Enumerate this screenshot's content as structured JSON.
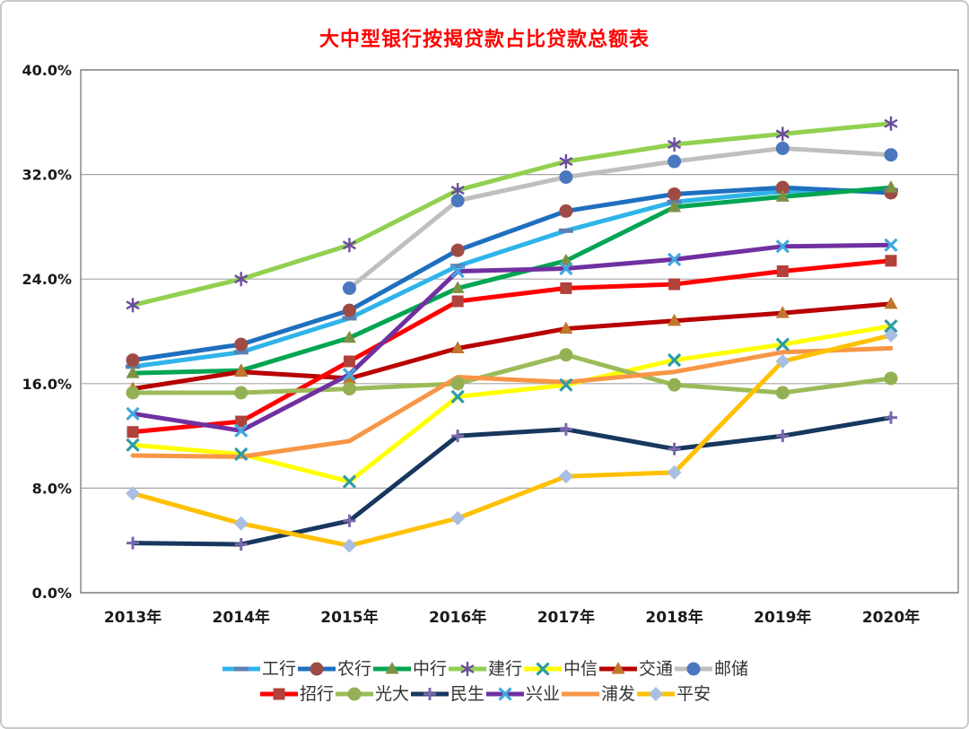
{
  "title": "大中型银行按揭贷款占比贷款总额表",
  "title_color": "#FF0000",
  "chart_data": {
    "type": "line",
    "title": "大中型银行按揭贷款占比贷款总额表",
    "categories": [
      "2013年",
      "2014年",
      "2015年",
      "2016年",
      "2017年",
      "2018年",
      "2019年",
      "2020年"
    ],
    "y_ticks": [
      "0.0%",
      "8.0%",
      "16.0%",
      "24.0%",
      "32.0%",
      "40.0%"
    ],
    "y_tick_values": [
      0,
      8,
      16,
      24,
      32,
      40
    ],
    "ylim": [
      0,
      40
    ],
    "grid": "horizontal-on",
    "legend_position": "bottom",
    "legend_rows": [
      [
        "工行",
        "农行",
        "中行",
        "建行",
        "中信",
        "交通",
        "邮储"
      ],
      [
        "招行",
        "光大",
        "民生",
        "兴业",
        "浦发",
        "平安"
      ]
    ],
    "series": [
      {
        "name": "工行",
        "color": "#2FB4E9",
        "marker": "dash",
        "marker_color": "#5B80B4",
        "values": [
          17.3,
          18.4,
          21.0,
          25.0,
          27.7,
          29.9,
          30.7,
          30.8
        ]
      },
      {
        "name": "农行",
        "color": "#1F6FBF",
        "marker": "circle",
        "marker_color": "#9E4B45",
        "values": [
          17.8,
          19.0,
          21.6,
          26.2,
          29.2,
          30.5,
          31.0,
          30.6
        ]
      },
      {
        "name": "中行",
        "color": "#00A551",
        "marker": "triangle",
        "marker_color": "#7E9144",
        "values": [
          16.8,
          17.0,
          19.5,
          23.3,
          25.4,
          29.5,
          30.3,
          31.0
        ]
      },
      {
        "name": "建行",
        "color": "#92D050",
        "marker": "asterisk",
        "marker_color": "#6A4D9E",
        "values": [
          22.0,
          24.0,
          26.6,
          30.8,
          33.0,
          34.3,
          35.1,
          35.9
        ]
      },
      {
        "name": "中信",
        "color": "#FFFF00",
        "marker": "x",
        "marker_color": "#2E9BA6",
        "values": [
          11.3,
          10.6,
          8.5,
          15.0,
          15.9,
          17.8,
          19.0,
          20.4
        ]
      },
      {
        "name": "交通",
        "color": "#B80000",
        "marker": "triangle",
        "marker_color": "#C0762C",
        "values": [
          15.6,
          16.9,
          16.4,
          18.7,
          20.2,
          20.8,
          21.4,
          22.1
        ]
      },
      {
        "name": "邮储",
        "color": "#BFBFBF",
        "marker": "circle",
        "marker_color": "#4A77BE",
        "values": [
          null,
          null,
          23.3,
          30.0,
          31.8,
          33.0,
          34.0,
          33.5
        ]
      },
      {
        "name": "招行",
        "color": "#FF0000",
        "marker": "square",
        "marker_color": "#B0413B",
        "values": [
          12.3,
          13.1,
          17.7,
          22.3,
          23.3,
          23.6,
          24.6,
          25.4
        ]
      },
      {
        "name": "光大",
        "color": "#9BBB59",
        "marker": "circle",
        "marker_color": "#94B054",
        "values": [
          15.3,
          15.3,
          15.6,
          16.0,
          18.2,
          15.9,
          15.3,
          16.4
        ]
      },
      {
        "name": "民生",
        "color": "#17375E",
        "marker": "plus",
        "marker_color": "#7B68AE",
        "values": [
          3.8,
          3.7,
          5.5,
          12.0,
          12.5,
          11.0,
          12.0,
          13.4
        ]
      },
      {
        "name": "兴业",
        "color": "#7030A0",
        "marker": "x",
        "marker_color": "#41A8E0",
        "values": [
          13.7,
          12.4,
          16.7,
          24.6,
          24.8,
          25.5,
          26.5,
          26.6
        ]
      },
      {
        "name": "浦发",
        "color": "#F79646",
        "marker": "none",
        "marker_color": "#F79646",
        "values": [
          10.5,
          10.4,
          11.6,
          16.5,
          16.1,
          16.9,
          18.4,
          18.7
        ]
      },
      {
        "name": "平安",
        "color": "#FFC000",
        "marker": "diamond",
        "marker_color": "#A9BEE0",
        "values": [
          7.6,
          5.3,
          3.6,
          5.7,
          8.9,
          9.2,
          17.7,
          19.7
        ]
      }
    ]
  }
}
